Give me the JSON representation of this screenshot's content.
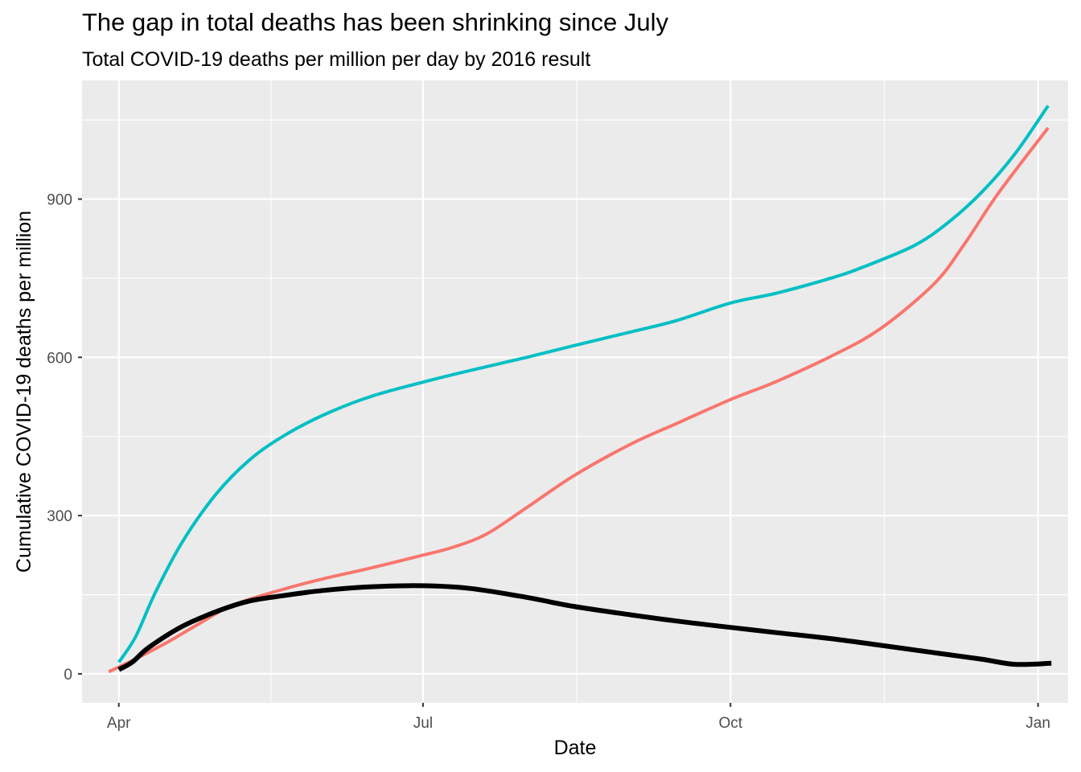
{
  "chart_data": {
    "type": "line",
    "title": "The gap in total deaths has been shrinking since July",
    "subtitle": "Total COVID-19 deaths per million per day by 2016 result",
    "xlabel": "Date",
    "ylabel": "Cumulative COVID-19 deaths per million",
    "xlim": [
      "2020-03-21",
      "2021-01-10"
    ],
    "ylim": [
      -55,
      1125
    ],
    "x_ticks": [
      {
        "date": "2020-04-01",
        "label": "Apr"
      },
      {
        "date": "2020-07-01",
        "label": "Jul"
      },
      {
        "date": "2020-10-01",
        "label": "Oct"
      },
      {
        "date": "2021-01-01",
        "label": "Jan"
      }
    ],
    "y_ticks": [
      0,
      300,
      600,
      900
    ],
    "grid": true,
    "legend": "none",
    "background": "#ebebeb",
    "series": [
      {
        "color": "#00bfc4",
        "line_width": 4,
        "points": [
          [
            "2020-04-01",
            22
          ],
          [
            "2020-04-06",
            70
          ],
          [
            "2020-04-12",
            155
          ],
          [
            "2020-04-20",
            250
          ],
          [
            "2020-04-30",
            340
          ],
          [
            "2020-05-10",
            405
          ],
          [
            "2020-05-20",
            450
          ],
          [
            "2020-06-01",
            490
          ],
          [
            "2020-06-15",
            525
          ],
          [
            "2020-07-01",
            553
          ],
          [
            "2020-07-15",
            575
          ],
          [
            "2020-08-01",
            600
          ],
          [
            "2020-08-15",
            622
          ],
          [
            "2020-09-01",
            648
          ],
          [
            "2020-09-15",
            670
          ],
          [
            "2020-10-01",
            703
          ],
          [
            "2020-10-15",
            722
          ],
          [
            "2020-11-01",
            752
          ],
          [
            "2020-11-10",
            772
          ],
          [
            "2020-11-25",
            812
          ],
          [
            "2020-12-05",
            855
          ],
          [
            "2020-12-15",
            912
          ],
          [
            "2020-12-25",
            985
          ],
          [
            "2021-01-04",
            1077
          ]
        ]
      },
      {
        "color": "#f8766d",
        "line_width": 4,
        "points": [
          [
            "2020-03-29",
            4
          ],
          [
            "2020-04-05",
            25
          ],
          [
            "2020-04-15",
            58
          ],
          [
            "2020-04-25",
            95
          ],
          [
            "2020-05-05",
            130
          ],
          [
            "2020-05-20",
            160
          ],
          [
            "2020-06-01",
            180
          ],
          [
            "2020-06-15",
            200
          ],
          [
            "2020-07-01",
            225
          ],
          [
            "2020-07-10",
            240
          ],
          [
            "2020-07-20",
            265
          ],
          [
            "2020-08-01",
            315
          ],
          [
            "2020-08-15",
            375
          ],
          [
            "2020-09-01",
            435
          ],
          [
            "2020-09-15",
            475
          ],
          [
            "2020-10-01",
            520
          ],
          [
            "2020-10-15",
            555
          ],
          [
            "2020-11-01",
            605
          ],
          [
            "2020-11-15",
            655
          ],
          [
            "2020-12-01",
            740
          ],
          [
            "2020-12-10",
            815
          ],
          [
            "2020-12-20",
            910
          ],
          [
            "2021-01-04",
            1035
          ]
        ]
      },
      {
        "color": "#000000",
        "line_width": 6,
        "points": [
          [
            "2020-04-01",
            8
          ],
          [
            "2020-04-05",
            22
          ],
          [
            "2020-04-10",
            50
          ],
          [
            "2020-04-20",
            90
          ],
          [
            "2020-05-01",
            120
          ],
          [
            "2020-05-10",
            138
          ],
          [
            "2020-05-20",
            148
          ],
          [
            "2020-06-01",
            158
          ],
          [
            "2020-06-15",
            165
          ],
          [
            "2020-07-01",
            167
          ],
          [
            "2020-07-15",
            162
          ],
          [
            "2020-08-01",
            145
          ],
          [
            "2020-08-15",
            128
          ],
          [
            "2020-09-01",
            112
          ],
          [
            "2020-09-15",
            100
          ],
          [
            "2020-10-01",
            88
          ],
          [
            "2020-10-15",
            78
          ],
          [
            "2020-11-01",
            66
          ],
          [
            "2020-11-15",
            54
          ],
          [
            "2020-12-01",
            40
          ],
          [
            "2020-12-15",
            28
          ],
          [
            "2020-12-25",
            18
          ],
          [
            "2021-01-05",
            20
          ]
        ]
      }
    ]
  }
}
